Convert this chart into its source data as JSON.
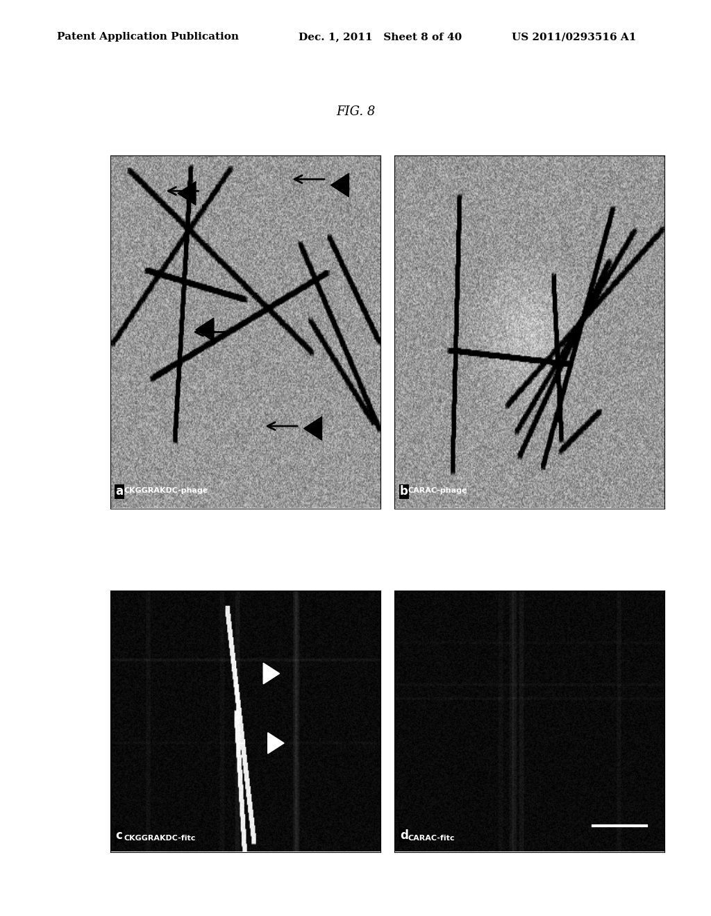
{
  "page_header_left": "Patent Application Publication",
  "page_header_center": "Dec. 1, 2011   Sheet 8 of 40",
  "page_header_right": "US 2011/0293516 A1",
  "figure_title": "FIG. 8",
  "panel_labels": [
    "a",
    "b",
    "c",
    "d"
  ],
  "panel_captions": [
    "CKGGRAKDC-phage",
    "CARAC-phage",
    "CKGGRAKDC-fitc",
    "CARAC-fitc"
  ],
  "background_color": "#ffffff",
  "panel_a_bg": "#a0a0a0",
  "panel_b_bg": "#b0b0b0",
  "panel_c_bg": "#050505",
  "panel_d_bg": "#050505",
  "header_fontsize": 11,
  "title_fontsize": 13,
  "caption_fontsize": 9,
  "label_fontsize": 11
}
